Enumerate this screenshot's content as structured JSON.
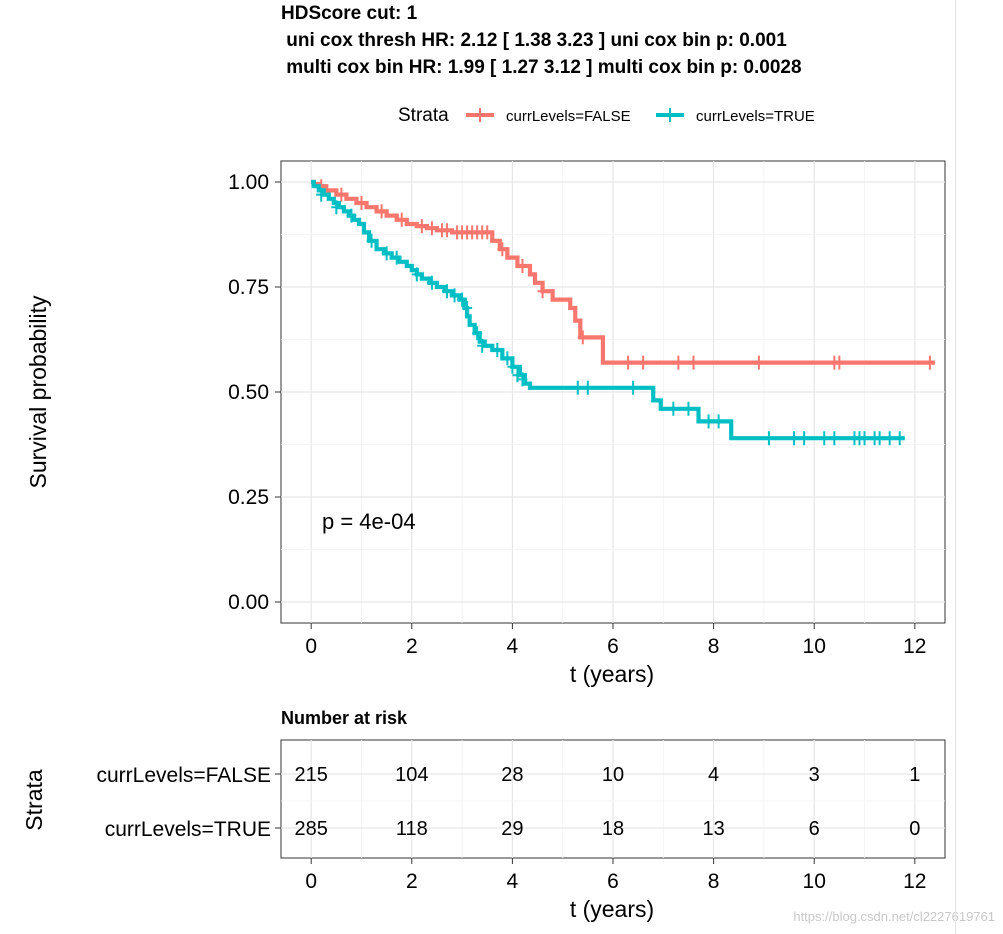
{
  "title_lines": [
    "HDScore cut: 1",
    " uni cox thresh HR: 2.12 [ 1.38 3.23 ] uni cox bin p: 0.001",
    " multi cox bin HR: 1.99 [ 1.27 3.12 ] multi cox bin p: 0.0028"
  ],
  "legend": {
    "title": "Strata",
    "entries": [
      {
        "label": "currLevels=FALSE",
        "color": "#F8766D"
      },
      {
        "label": "currLevels=TRUE",
        "color": "#00BFC4"
      }
    ]
  },
  "chart_data": {
    "type": "line",
    "subtype": "kaplan-meier",
    "xlabel": "t (years)",
    "ylabel": "Survival probability",
    "xlim": [
      -0.6,
      12.6
    ],
    "ylim": [
      -0.05,
      1.05
    ],
    "xticks": [
      0,
      2,
      4,
      6,
      8,
      10,
      12
    ],
    "yticks": [
      0.0,
      0.25,
      0.5,
      0.75,
      1.0
    ],
    "ytick_labels": [
      "0.00",
      "0.25",
      "0.50",
      "0.75",
      "1.00"
    ],
    "pvalue_label": "p = 4e-04",
    "series": [
      {
        "name": "currLevels=FALSE",
        "color": "#F8766D",
        "steps": [
          [
            0,
            1.0
          ],
          [
            0.05,
            0.995
          ],
          [
            0.15,
            0.99
          ],
          [
            0.3,
            0.98
          ],
          [
            0.5,
            0.97
          ],
          [
            0.7,
            0.96
          ],
          [
            0.9,
            0.95
          ],
          [
            1.1,
            0.94
          ],
          [
            1.3,
            0.93
          ],
          [
            1.5,
            0.92
          ],
          [
            1.7,
            0.91
          ],
          [
            1.9,
            0.9
          ],
          [
            2.1,
            0.895
          ],
          [
            2.3,
            0.89
          ],
          [
            2.5,
            0.885
          ],
          [
            2.8,
            0.88
          ],
          [
            3.6,
            0.86
          ],
          [
            3.75,
            0.84
          ],
          [
            3.9,
            0.82
          ],
          [
            4.1,
            0.8
          ],
          [
            4.35,
            0.78
          ],
          [
            4.45,
            0.76
          ],
          [
            4.6,
            0.74
          ],
          [
            4.8,
            0.72
          ],
          [
            5.0,
            0.72
          ],
          [
            5.15,
            0.7
          ],
          [
            5.25,
            0.67
          ],
          [
            5.35,
            0.63
          ],
          [
            5.8,
            0.57
          ],
          [
            12.4,
            0.57
          ]
        ],
        "censors": [
          [
            0.2,
            0.99
          ],
          [
            0.6,
            0.97
          ],
          [
            1.0,
            0.95
          ],
          [
            1.4,
            0.93
          ],
          [
            1.8,
            0.91
          ],
          [
            2.2,
            0.895
          ],
          [
            2.4,
            0.89
          ],
          [
            2.6,
            0.885
          ],
          [
            2.7,
            0.885
          ],
          [
            2.9,
            0.88
          ],
          [
            3.0,
            0.88
          ],
          [
            3.1,
            0.88
          ],
          [
            3.2,
            0.88
          ],
          [
            3.3,
            0.88
          ],
          [
            3.4,
            0.88
          ],
          [
            3.5,
            0.88
          ],
          [
            3.8,
            0.84
          ],
          [
            4.2,
            0.8
          ],
          [
            4.6,
            0.74
          ],
          [
            5.4,
            0.63
          ],
          [
            6.3,
            0.57
          ],
          [
            6.6,
            0.57
          ],
          [
            7.3,
            0.57
          ],
          [
            7.6,
            0.57
          ],
          [
            8.9,
            0.57
          ],
          [
            10.4,
            0.57
          ],
          [
            10.5,
            0.57
          ],
          [
            12.3,
            0.57
          ]
        ]
      },
      {
        "name": "currLevels=TRUE",
        "color": "#00BFC4",
        "steps": [
          [
            0,
            1.0
          ],
          [
            0.05,
            0.99
          ],
          [
            0.15,
            0.98
          ],
          [
            0.25,
            0.97
          ],
          [
            0.35,
            0.96
          ],
          [
            0.45,
            0.95
          ],
          [
            0.55,
            0.94
          ],
          [
            0.65,
            0.93
          ],
          [
            0.75,
            0.92
          ],
          [
            0.85,
            0.91
          ],
          [
            0.95,
            0.9
          ],
          [
            1.05,
            0.88
          ],
          [
            1.15,
            0.86
          ],
          [
            1.3,
            0.84
          ],
          [
            1.45,
            0.83
          ],
          [
            1.6,
            0.82
          ],
          [
            1.75,
            0.81
          ],
          [
            1.9,
            0.8
          ],
          [
            2.0,
            0.79
          ],
          [
            2.1,
            0.78
          ],
          [
            2.2,
            0.77
          ],
          [
            2.35,
            0.76
          ],
          [
            2.5,
            0.75
          ],
          [
            2.65,
            0.74
          ],
          [
            2.8,
            0.73
          ],
          [
            2.95,
            0.72
          ],
          [
            3.05,
            0.7
          ],
          [
            3.1,
            0.68
          ],
          [
            3.15,
            0.66
          ],
          [
            3.25,
            0.64
          ],
          [
            3.35,
            0.62
          ],
          [
            3.45,
            0.61
          ],
          [
            3.6,
            0.6
          ],
          [
            3.8,
            0.58
          ],
          [
            4.0,
            0.56
          ],
          [
            4.15,
            0.54
          ],
          [
            4.25,
            0.52
          ],
          [
            4.35,
            0.51
          ],
          [
            6.8,
            0.48
          ],
          [
            6.95,
            0.46
          ],
          [
            7.7,
            0.43
          ],
          [
            8.35,
            0.39
          ],
          [
            11.8,
            0.39
          ]
        ],
        "censors": [
          [
            0.2,
            0.97
          ],
          [
            0.5,
            0.94
          ],
          [
            0.8,
            0.92
          ],
          [
            1.2,
            0.86
          ],
          [
            1.5,
            0.83
          ],
          [
            1.7,
            0.82
          ],
          [
            2.1,
            0.78
          ],
          [
            2.4,
            0.76
          ],
          [
            2.7,
            0.74
          ],
          [
            2.85,
            0.73
          ],
          [
            3.0,
            0.72
          ],
          [
            3.1,
            0.7
          ],
          [
            3.3,
            0.64
          ],
          [
            3.4,
            0.61
          ],
          [
            3.7,
            0.6
          ],
          [
            3.9,
            0.58
          ],
          [
            4.0,
            0.56
          ],
          [
            4.1,
            0.54
          ],
          [
            4.2,
            0.53
          ],
          [
            5.3,
            0.51
          ],
          [
            5.5,
            0.51
          ],
          [
            6.4,
            0.51
          ],
          [
            7.2,
            0.46
          ],
          [
            7.5,
            0.46
          ],
          [
            7.9,
            0.43
          ],
          [
            8.1,
            0.43
          ],
          [
            9.1,
            0.39
          ],
          [
            9.6,
            0.39
          ],
          [
            9.8,
            0.39
          ],
          [
            10.2,
            0.39
          ],
          [
            10.4,
            0.39
          ],
          [
            10.8,
            0.39
          ],
          [
            10.9,
            0.39
          ],
          [
            11.0,
            0.39
          ],
          [
            11.2,
            0.39
          ],
          [
            11.3,
            0.39
          ],
          [
            11.5,
            0.39
          ],
          [
            11.7,
            0.39
          ]
        ]
      }
    ]
  },
  "risk_table": {
    "title": "Number at risk",
    "ylabel": "Strata",
    "xlabel": "t (years)",
    "times": [
      0,
      2,
      4,
      6,
      8,
      10,
      12
    ],
    "rows": [
      {
        "label": "currLevels=FALSE",
        "counts": [
          "215",
          "104",
          "28",
          "10",
          "4",
          "3",
          "1"
        ]
      },
      {
        "label": "currLevels=TRUE",
        "counts": [
          "285",
          "118",
          "29",
          "18",
          "13",
          "6",
          "0"
        ]
      }
    ]
  },
  "watermark": "https://blog.csdn.net/cl2227619761"
}
